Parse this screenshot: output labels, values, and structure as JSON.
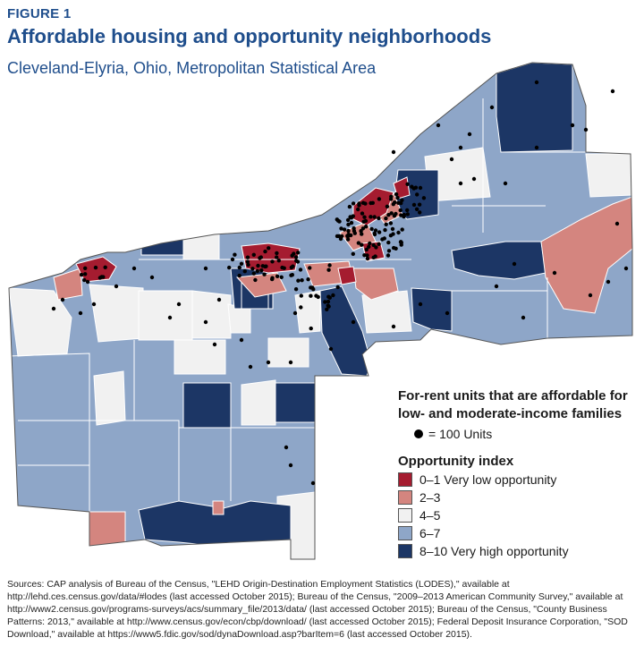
{
  "figure_label": "FIGURE 1",
  "title": "Affordable housing and opportunity neighborhoods",
  "subtitle": "Cleveland-Elyria, Ohio, Metropolitan Statistical Area",
  "legend": {
    "units_title": "For-rent units that are affordable for low- and moderate-income families",
    "dot_label": "= 100 Units",
    "opportunity_title": "Opportunity index",
    "categories": [
      {
        "label": "0–1 Very low opportunity",
        "color": "#a51c30"
      },
      {
        "label": "2–3",
        "color": "#d4857f"
      },
      {
        "label": "4–5",
        "color": "#f1f1f1"
      },
      {
        "label": "6–7",
        "color": "#8ea6c8"
      },
      {
        "label": "8–10 Very high opportunity",
        "color": "#1c3665"
      }
    ]
  },
  "sources": "Sources: CAP analysis of Bureau of the Census, \"LEHD Origin-Destination Employment Statistics (LODES),\" available at http://lehd.ces.census.gov/data/#lodes (last accessed October 2015); Bureau of the Census, \"2009–2013 American Community Survey,\" available at http://www2.census.gov/programs-surveys/acs/summary_file/2013/data/ (last accessed October 2015); Bureau of the Census, \"County Business Patterns: 2013,\" available at http://www.census.gov/econ/cbp/download/ (last accessed October 2015); Federal Deposit Insurance Corporation, \"SOD Download,\" available at https://www5.fdic.gov/sod/dynaDownload.asp?barItem=6 (last accessed October 2015)."
}
